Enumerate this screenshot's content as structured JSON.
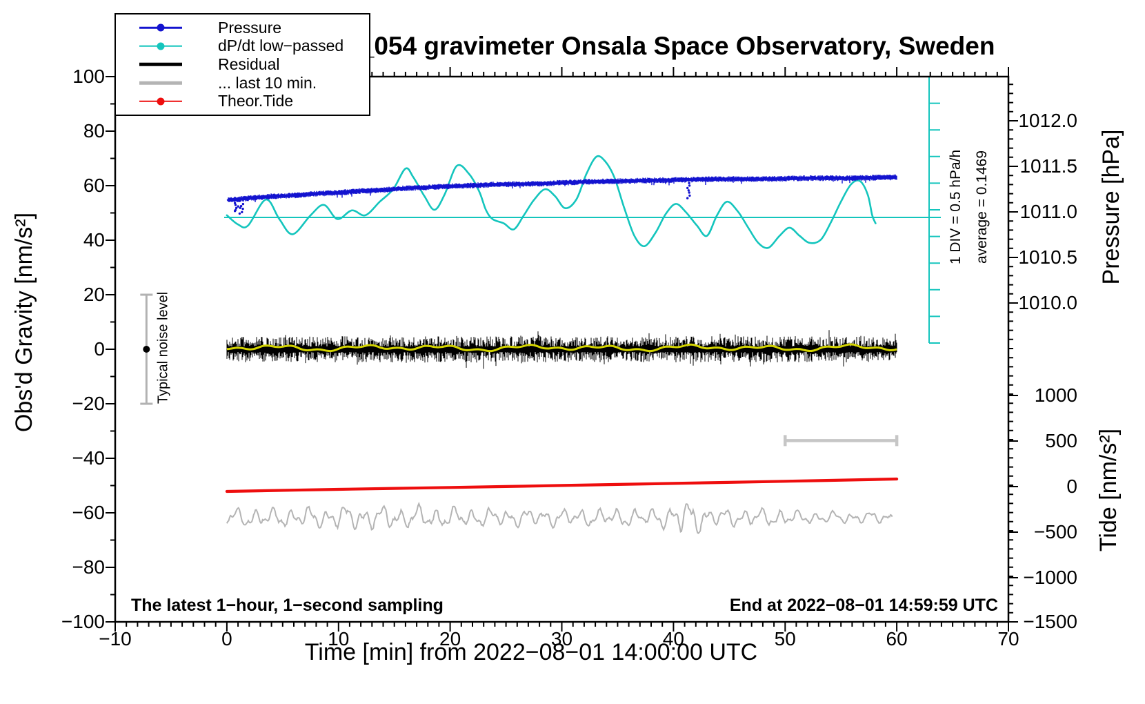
{
  "title": "SCG_054 gravimeter Onsala Space Observatory, Sweden",
  "axes": {
    "x": {
      "label": "Time [min] from 2022−08−01 14:00:00 UTC",
      "min": -10,
      "max": 70,
      "major_step": 10,
      "minor_step": 1,
      "tick_labels": [
        "−10",
        "0",
        "10",
        "20",
        "30",
        "40",
        "50",
        "60",
        "70"
      ],
      "tick_values": [
        -10,
        0,
        10,
        20,
        30,
        40,
        50,
        60,
        70
      ]
    },
    "y_left": {
      "label": "Obs'd Gravity [nm/s²]",
      "min": -100,
      "max": 100,
      "major_step": 20,
      "minor_step": 10,
      "tick_labels": [
        "100",
        "80",
        "60",
        "40",
        "20",
        "0",
        "−20",
        "−40",
        "−60",
        "−80",
        "−100"
      ],
      "tick_values": [
        100,
        80,
        60,
        40,
        20,
        0,
        -20,
        -40,
        -60,
        -80,
        -100
      ]
    },
    "y_right_pressure": {
      "label": "Pressure [hPa]",
      "minor_step_hPa": 0.1,
      "tick_labels": [
        "1012.0",
        "1011.5",
        "1011.0",
        "1010.5",
        "1010.0"
      ],
      "tick_values": [
        1012.0,
        1011.5,
        1011.0,
        1010.5,
        1010.0
      ]
    },
    "y_right_tide": {
      "label": "Tide [nm/s²]",
      "minor_step": 100,
      "tick_labels": [
        "1000",
        "500",
        "0",
        "−500",
        "−1000",
        "−1500"
      ],
      "tick_values": [
        1000,
        500,
        0,
        -500,
        -1000,
        -1500
      ]
    }
  },
  "legend": {
    "items": [
      {
        "label": "Pressure",
        "color": "#1313cf",
        "line": "thin-dot"
      },
      {
        "label": "dP/dt low−passed",
        "color": "#14c5bd",
        "line": "thin-dot"
      },
      {
        "label": "Residual",
        "color": "#000000",
        "line": "thick"
      },
      {
        "label": "... last 10 min.",
        "color": "#b4b4b4",
        "line": "thick"
      },
      {
        "label": "Theor.Tide",
        "color": "#ee0e0e",
        "line": "thin-dot"
      }
    ]
  },
  "annotations": {
    "div_scale": "1 DIV = 0.5 hPa/h",
    "average": "average = 0.1469",
    "noise_level": "Typical noise level",
    "sampling": "The latest 1−hour, 1−second sampling",
    "end_time": "End at 2022−08−01 14:59:59 UTC"
  },
  "chart_data": {
    "type": "line",
    "title": "SCG_054 gravimeter Onsala Space Observatory, Sweden",
    "xlabel": "Time [min] from 2022−08−01 14:00:00 UTC",
    "x_axis_range_min": [
      -10,
      70
    ],
    "data_window_min": [
      0,
      60
    ],
    "grid": false,
    "legend_position": "top-left",
    "series": [
      {
        "name": "Pressure",
        "axis": "pressure_hPa",
        "color": "#1313cf",
        "style": "noisy-line",
        "noise_amplitude_hPa": 0.03,
        "outlier_clusters_t_min": [
          0.85,
          1.3,
          41.3
        ],
        "points": [
          [
            0,
            1011.13
          ],
          [
            2,
            1011.15
          ],
          [
            4,
            1011.17
          ],
          [
            6,
            1011.18
          ],
          [
            8,
            1011.2
          ],
          [
            10,
            1011.21
          ],
          [
            12,
            1011.23
          ],
          [
            14,
            1011.24
          ],
          [
            16,
            1011.26
          ],
          [
            18,
            1011.27
          ],
          [
            20,
            1011.28
          ],
          [
            24,
            1011.3
          ],
          [
            28,
            1011.31
          ],
          [
            32,
            1011.33
          ],
          [
            36,
            1011.34
          ],
          [
            40,
            1011.35
          ],
          [
            44,
            1011.36
          ],
          [
            48,
            1011.36
          ],
          [
            52,
            1011.37
          ],
          [
            56,
            1011.37
          ],
          [
            60,
            1011.38
          ]
        ]
      },
      {
        "name": "dP/dt low−passed",
        "axis": "dpdt_hPa_per_h",
        "color": "#14c5bd",
        "style": "smooth-line",
        "zero_line_at_gravity": 50,
        "div_scale_hPa_per_h": 0.5,
        "average_hPa_per_h": 0.1469,
        "points": [
          [
            0,
            0.04
          ],
          [
            1,
            -0.13
          ],
          [
            1.9,
            -0.15
          ],
          [
            3.5,
            0.33
          ],
          [
            4.7,
            -0.03
          ],
          [
            5.9,
            -0.31
          ],
          [
            7.5,
            0.04
          ],
          [
            8.7,
            0.23
          ],
          [
            9.9,
            -0.03
          ],
          [
            11.2,
            0.13
          ],
          [
            12.4,
            0.04
          ],
          [
            13.7,
            0.29
          ],
          [
            14.9,
            0.52
          ],
          [
            16,
            0.9
          ],
          [
            16.7,
            0.74
          ],
          [
            17.7,
            0.39
          ],
          [
            18.6,
            0.14
          ],
          [
            19.5,
            0.42
          ],
          [
            20.6,
            0.95
          ],
          [
            21.7,
            0.8
          ],
          [
            22.6,
            0.48
          ],
          [
            23.2,
            0.14
          ],
          [
            23.8,
            -0.03
          ],
          [
            24.8,
            -0.11
          ],
          [
            25.7,
            -0.22
          ],
          [
            26.6,
            0.04
          ],
          [
            27.5,
            0.32
          ],
          [
            28.5,
            0.52
          ],
          [
            29.4,
            0.39
          ],
          [
            30.3,
            0.17
          ],
          [
            31.3,
            0.33
          ],
          [
            32.2,
            0.8
          ],
          [
            33.1,
            1.12
          ],
          [
            33.9,
            1.03
          ],
          [
            34.7,
            0.74
          ],
          [
            35.6,
            0.17
          ],
          [
            36.5,
            -0.34
          ],
          [
            37.4,
            -0.53
          ],
          [
            38.4,
            -0.28
          ],
          [
            39.3,
            0.06
          ],
          [
            40.2,
            0.25
          ],
          [
            41.1,
            0.1
          ],
          [
            42.1,
            -0.15
          ],
          [
            43,
            -0.34
          ],
          [
            43.9,
            0.04
          ],
          [
            44.8,
            0.29
          ],
          [
            45.8,
            0.1
          ],
          [
            46.7,
            -0.19
          ],
          [
            47.6,
            -0.47
          ],
          [
            48.5,
            -0.56
          ],
          [
            49.5,
            -0.34
          ],
          [
            50.4,
            -0.19
          ],
          [
            51.3,
            -0.34
          ],
          [
            52.2,
            -0.47
          ],
          [
            53.2,
            -0.41
          ],
          [
            54.1,
            -0.09
          ],
          [
            55,
            0.29
          ],
          [
            55.9,
            0.61
          ],
          [
            56.7,
            0.67
          ],
          [
            57.4,
            0.42
          ],
          [
            57.8,
            0.04
          ],
          [
            58.1,
            -0.11
          ]
        ]
      },
      {
        "name": "Residual",
        "axis": "gravity_nm_s2",
        "color": "#000000",
        "style": "noise-band",
        "mean": 0,
        "typical_amplitude": 3,
        "spike_amplitude": 8
      },
      {
        "name": "Residual low−passed",
        "axis": "gravity_nm_s2",
        "color": "#d4d400",
        "style": "smooth-line",
        "mean": -0.5,
        "amplitude": 1
      },
      {
        "name": "... last 10 min.",
        "axis": "gravity_nm_s2",
        "color": "#b4b4b4",
        "style": "oscillation",
        "center": -62,
        "typical_amplitude": 4,
        "burst_at_t_min": 41.1,
        "source_window_min": [
          50,
          60
        ]
      },
      {
        "name": "Theor.Tide",
        "axis": "tide_nm_s2",
        "color": "#ee0e0e",
        "style": "smooth-line",
        "points": [
          [
            0,
            -53
          ],
          [
            10,
            -30
          ],
          [
            20,
            -10
          ],
          [
            30,
            12
          ],
          [
            40,
            35
          ],
          [
            50,
            58
          ],
          [
            60,
            83
          ]
        ]
      }
    ],
    "markers": {
      "noise_errorbar": {
        "center_gravity": 0,
        "half_extent_gravity": 20,
        "t_min": -7.2,
        "color": "#b2b2b2"
      },
      "last10_window_bar": {
        "t_from_min": 50,
        "t_to_min": 60,
        "gravity_level": -33.5,
        "color": "#c6c6c6"
      },
      "dpdt_zero_line_gravity": 50,
      "dpdt_scale_bar_divs": 10
    }
  }
}
